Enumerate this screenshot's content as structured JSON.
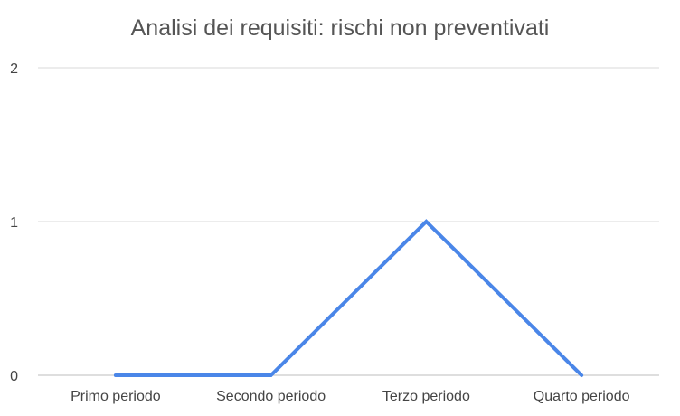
{
  "chart_data": {
    "type": "line",
    "title": "Analisi dei requisiti: rischi non preventivati",
    "categories": [
      "Primo periodo",
      "Secondo periodo",
      "Terzo periodo",
      "Quarto periodo"
    ],
    "series": [
      {
        "values": [
          0,
          0,
          1,
          0
        ],
        "color": "#4a86e8"
      }
    ],
    "yticks": [
      "0",
      "1",
      "2"
    ],
    "ylim": [
      0,
      2
    ],
    "grid": true,
    "gridColor": "#d9d9d9",
    "xlabel": "",
    "ylabel": "",
    "legend": "none"
  }
}
